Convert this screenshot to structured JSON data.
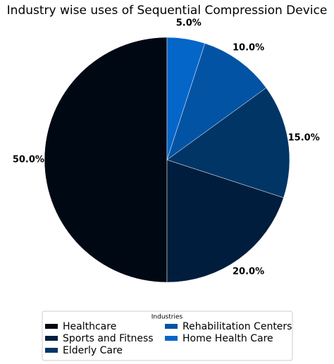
{
  "chart_data": {
    "type": "pie",
    "title": "Industry wise uses of Sequential Compression Device",
    "categories": [
      "Healthcare",
      "Sports and Fitness",
      "Elderly Care",
      "Rehabilitation Centers",
      "Home Health Care"
    ],
    "values": [
      50,
      20,
      15,
      10,
      5
    ],
    "value_labels": [
      "50.0%",
      "20.0%",
      "15.0%",
      "10.0%",
      "5.0%"
    ],
    "colors": [
      "#000814",
      "#001d3d",
      "#003566",
      "#0353a4",
      "#0466c8"
    ],
    "legend_title": "Industries",
    "legend": "lower center"
  }
}
